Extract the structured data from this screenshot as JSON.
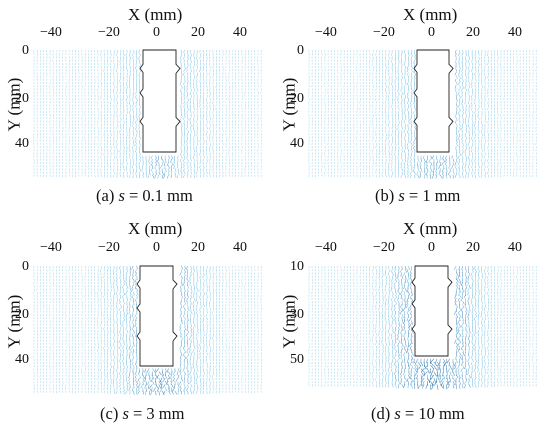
{
  "colors": {
    "field": "#2f9fd6",
    "field_dark": "#1f6fb0",
    "outline": "#222222"
  },
  "x_axis": {
    "label": "X (mm)",
    "ticks": [
      -40,
      -20,
      0,
      20,
      40
    ],
    "tick_labels": [
      "−40",
      "−20",
      "0",
      "20",
      "40"
    ]
  },
  "y_axis_label": "Y (mm)",
  "panels": [
    {
      "id": "a",
      "caption_prefix": "(a) ",
      "caption_var": "s",
      "caption_value": " = 0.1 mm",
      "y_ticks": [
        "0",
        "20",
        "40"
      ],
      "intensity": 0.55
    },
    {
      "id": "b",
      "caption_prefix": "(b) ",
      "caption_var": "s",
      "caption_value": " = 1 mm",
      "y_ticks": [
        "0",
        "20",
        "40"
      ],
      "intensity": 0.65
    },
    {
      "id": "c",
      "caption_prefix": "(c) ",
      "caption_var": "s",
      "caption_value": " = 3 mm",
      "y_ticks": [
        "0",
        "20",
        "40"
      ],
      "intensity": 0.8
    },
    {
      "id": "d",
      "caption_prefix": "(d) ",
      "caption_var": "s",
      "caption_value": " = 10 mm",
      "y_ticks": [
        "10",
        "30",
        "50"
      ],
      "intensity": 1.0
    }
  ]
}
